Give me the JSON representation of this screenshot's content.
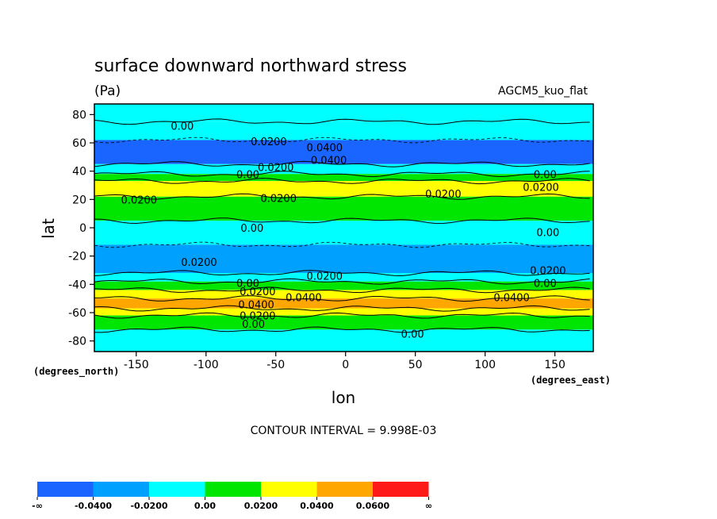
{
  "chart_data": {
    "type": "heatmap",
    "subtype": "filled-contour",
    "title": "surface downward northward stress",
    "units": "(Pa)",
    "dataset_label": "AGCM5_kuo_flat",
    "xlabel": "lon",
    "ylabel": "lat",
    "x_units": "(degrees_east)",
    "y_units": "(degrees_north)",
    "xlim": [
      -180,
      177.5
    ],
    "ylim": [
      -87.5,
      87.5
    ],
    "x_ticks": [
      -150,
      -100,
      -50,
      0,
      50,
      100,
      150
    ],
    "x_tick_labels": [
      "-150",
      "-100",
      "-50",
      "0",
      "50",
      "100",
      "150"
    ],
    "y_ticks": [
      80,
      60,
      40,
      20,
      0,
      -20,
      -40,
      -60,
      -80
    ],
    "y_tick_labels": [
      "80",
      "60",
      "40",
      "20",
      "0",
      "-20",
      "-40",
      "-60",
      "-80"
    ],
    "contour_interval_text": "CONTOUR INTERVAL = 9.998E-03",
    "colorbar": {
      "colors": [
        "#1a64ff",
        "#00a0ff",
        "#00ffff",
        "#00e600",
        "#ffff00",
        "#ffa600",
        "#ff1a1a"
      ],
      "labels": [
        "-∞",
        "-0.0400",
        "-0.0200",
        "0.00",
        "0.0200",
        "0.0400",
        "0.0600",
        "∞"
      ]
    },
    "bands": [
      {
        "lat": [
          75,
          87.5
        ],
        "level": 2,
        "note": "light cyan/green near pole"
      },
      {
        "lat": [
          62,
          75
        ],
        "level": 2
      },
      {
        "lat": [
          45,
          62
        ],
        "level": 0
      },
      {
        "lat": [
          38,
          45
        ],
        "level": 2
      },
      {
        "lat": [
          33,
          38
        ],
        "level": 3
      },
      {
        "lat": [
          22,
          33
        ],
        "level": 4
      },
      {
        "lat": [
          5,
          22
        ],
        "level": 3
      },
      {
        "lat": [
          -12,
          5
        ],
        "level": 2
      },
      {
        "lat": [
          -32,
          -12
        ],
        "level": 1
      },
      {
        "lat": [
          -38,
          -32
        ],
        "level": 2
      },
      {
        "lat": [
          -44,
          -38
        ],
        "level": 3
      },
      {
        "lat": [
          -50,
          -44
        ],
        "level": 4
      },
      {
        "lat": [
          -57,
          -50
        ],
        "level": 5
      },
      {
        "lat": [
          -62,
          -57
        ],
        "level": 4
      },
      {
        "lat": [
          -72,
          -62
        ],
        "level": 3
      },
      {
        "lat": [
          -87.5,
          -72
        ],
        "level": 2
      }
    ],
    "contour_labels": [
      {
        "text": "0.00",
        "lon": -117,
        "lat": 72
      },
      {
        "text": "0.0200",
        "lon": -55,
        "lat": 61
      },
      {
        "text": "0.0400",
        "lon": -15,
        "lat": 57
      },
      {
        "text": "0.0400",
        "lon": -12,
        "lat": 48
      },
      {
        "text": "0.0200",
        "lon": -50,
        "lat": 43
      },
      {
        "text": "0.00",
        "lon": -70,
        "lat": 38
      },
      {
        "text": "0.00",
        "lon": 143,
        "lat": 38
      },
      {
        "text": "0.0200",
        "lon": 140,
        "lat": 29
      },
      {
        "text": "0.0200",
        "lon": -148,
        "lat": 20
      },
      {
        "text": "0.0200",
        "lon": -48,
        "lat": 21
      },
      {
        "text": "0.0200",
        "lon": 70,
        "lat": 24
      },
      {
        "text": "0.00",
        "lon": -67,
        "lat": 0
      },
      {
        "text": "0.00",
        "lon": 145,
        "lat": -3
      },
      {
        "text": "0.0200",
        "lon": -105,
        "lat": -24
      },
      {
        "text": "0.0200",
        "lon": -15,
        "lat": -34
      },
      {
        "text": "0.0200",
        "lon": 145,
        "lat": -30
      },
      {
        "text": "0.00",
        "lon": -70,
        "lat": -39
      },
      {
        "text": "0.00",
        "lon": 143,
        "lat": -39
      },
      {
        "text": "0.0200",
        "lon": -63,
        "lat": -45
      },
      {
        "text": "0.0400",
        "lon": -30,
        "lat": -49
      },
      {
        "text": "0.0400",
        "lon": -64,
        "lat": -54
      },
      {
        "text": "0.0400",
        "lon": 119,
        "lat": -49
      },
      {
        "text": "0.0200",
        "lon": -63,
        "lat": -62
      },
      {
        "text": "0.00",
        "lon": -66,
        "lat": -68
      },
      {
        "text": "0.00",
        "lon": 48,
        "lat": -75
      }
    ]
  }
}
